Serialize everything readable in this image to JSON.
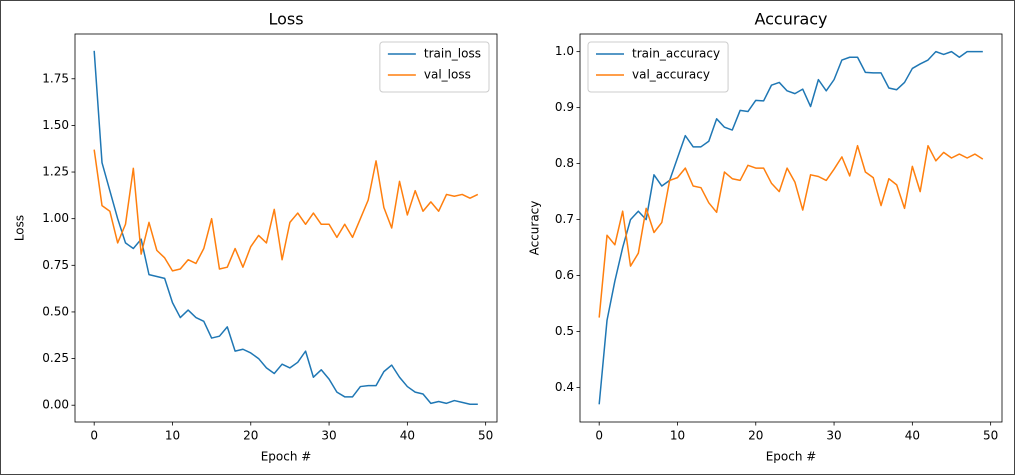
{
  "chart_data": [
    {
      "type": "line",
      "title": "Loss",
      "xlabel": "Epoch #",
      "ylabel": "Loss",
      "x": [
        0,
        1,
        2,
        3,
        4,
        5,
        6,
        7,
        8,
        9,
        10,
        11,
        12,
        13,
        14,
        15,
        16,
        17,
        18,
        19,
        20,
        21,
        22,
        23,
        24,
        25,
        26,
        27,
        28,
        29,
        30,
        31,
        32,
        33,
        34,
        35,
        36,
        37,
        38,
        39,
        40,
        41,
        42,
        43,
        44,
        45,
        46,
        47,
        48,
        49
      ],
      "series": [
        {
          "name": "train_loss",
          "color": "#1f77b4",
          "values": [
            1.9,
            1.3,
            1.15,
            1.0,
            0.87,
            0.84,
            0.89,
            0.7,
            0.69,
            0.68,
            0.55,
            0.47,
            0.51,
            0.47,
            0.45,
            0.36,
            0.37,
            0.42,
            0.29,
            0.3,
            0.28,
            0.25,
            0.2,
            0.17,
            0.22,
            0.2,
            0.23,
            0.29,
            0.15,
            0.19,
            0.14,
            0.07,
            0.045,
            0.045,
            0.1,
            0.105,
            0.105,
            0.18,
            0.215,
            0.15,
            0.1,
            0.07,
            0.06,
            0.01,
            0.02,
            0.01,
            0.025,
            0.015,
            0.005,
            0.005
          ]
        },
        {
          "name": "val_loss",
          "color": "#ff7f0e",
          "values": [
            1.37,
            1.07,
            1.04,
            0.87,
            0.97,
            1.27,
            0.81,
            0.98,
            0.83,
            0.79,
            0.72,
            0.73,
            0.78,
            0.76,
            0.84,
            1.0,
            0.73,
            0.74,
            0.84,
            0.74,
            0.85,
            0.91,
            0.87,
            1.05,
            0.78,
            0.98,
            1.03,
            0.97,
            1.03,
            0.97,
            0.97,
            0.9,
            0.97,
            0.9,
            1.0,
            1.1,
            1.31,
            1.06,
            0.95,
            1.2,
            1.02,
            1.15,
            1.04,
            1.09,
            1.04,
            1.13,
            1.12,
            1.13,
            1.11,
            1.13
          ]
        }
      ],
      "xlim": [
        -2.45,
        51.45
      ],
      "xticks": [
        0,
        10,
        20,
        30,
        40,
        50
      ],
      "ylim": [
        -0.09,
        1.99
      ],
      "yticks": [
        {
          "value": 0,
          "label": "0.00"
        },
        {
          "value": 0.25,
          "label": "0.25"
        },
        {
          "value": 0.5,
          "label": "0.50"
        },
        {
          "value": 0.75,
          "label": "0.75"
        },
        {
          "value": 1,
          "label": "1.00"
        },
        {
          "value": 1.25,
          "label": "1.25"
        },
        {
          "value": 1.5,
          "label": "1.50"
        },
        {
          "value": 1.75,
          "label": "1.75"
        }
      ],
      "grid": false,
      "legend": "upper right"
    },
    {
      "type": "line",
      "title": "Accuracy",
      "xlabel": "Epoch #",
      "ylabel": "Accuracy",
      "x": [
        0,
        1,
        2,
        3,
        4,
        5,
        6,
        7,
        8,
        9,
        10,
        11,
        12,
        13,
        14,
        15,
        16,
        17,
        18,
        19,
        20,
        21,
        22,
        23,
        24,
        25,
        26,
        27,
        28,
        29,
        30,
        31,
        32,
        33,
        34,
        35,
        36,
        37,
        38,
        39,
        40,
        41,
        42,
        43,
        44,
        45,
        46,
        47,
        48,
        49
      ],
      "series": [
        {
          "name": "train_accuracy",
          "color": "#1f77b4",
          "values": [
            0.37,
            0.52,
            0.59,
            0.65,
            0.7,
            0.715,
            0.7,
            0.78,
            0.76,
            0.77,
            0.81,
            0.85,
            0.83,
            0.83,
            0.84,
            0.88,
            0.865,
            0.86,
            0.895,
            0.893,
            0.913,
            0.912,
            0.94,
            0.945,
            0.93,
            0.925,
            0.933,
            0.902,
            0.95,
            0.93,
            0.95,
            0.985,
            0.99,
            0.99,
            0.963,
            0.962,
            0.962,
            0.935,
            0.932,
            0.945,
            0.97,
            0.978,
            0.985,
            1.0,
            0.995,
            1.0,
            0.99,
            1.0,
            1.0,
            1.0
          ]
        },
        {
          "name": "val_accuracy",
          "color": "#ff7f0e",
          "values": [
            0.525,
            0.672,
            0.655,
            0.715,
            0.617,
            0.64,
            0.72,
            0.677,
            0.695,
            0.77,
            0.775,
            0.792,
            0.76,
            0.757,
            0.73,
            0.713,
            0.785,
            0.773,
            0.77,
            0.797,
            0.792,
            0.792,
            0.765,
            0.75,
            0.792,
            0.767,
            0.717,
            0.78,
            0.777,
            0.77,
            0.79,
            0.812,
            0.778,
            0.832,
            0.785,
            0.775,
            0.725,
            0.773,
            0.762,
            0.72,
            0.795,
            0.75,
            0.832,
            0.805,
            0.82,
            0.81,
            0.817,
            0.81,
            0.817,
            0.808
          ]
        }
      ],
      "xlim": [
        -2.45,
        51.45
      ],
      "xticks": [
        0,
        10,
        20,
        30,
        40,
        50
      ],
      "ylim": [
        0.3385,
        1.0315
      ],
      "yticks": [
        0.4,
        0.5,
        0.6,
        0.7,
        0.8,
        0.9,
        {
          "value": 1,
          "label": "1.0"
        }
      ],
      "grid": false,
      "legend": "upper left"
    }
  ]
}
